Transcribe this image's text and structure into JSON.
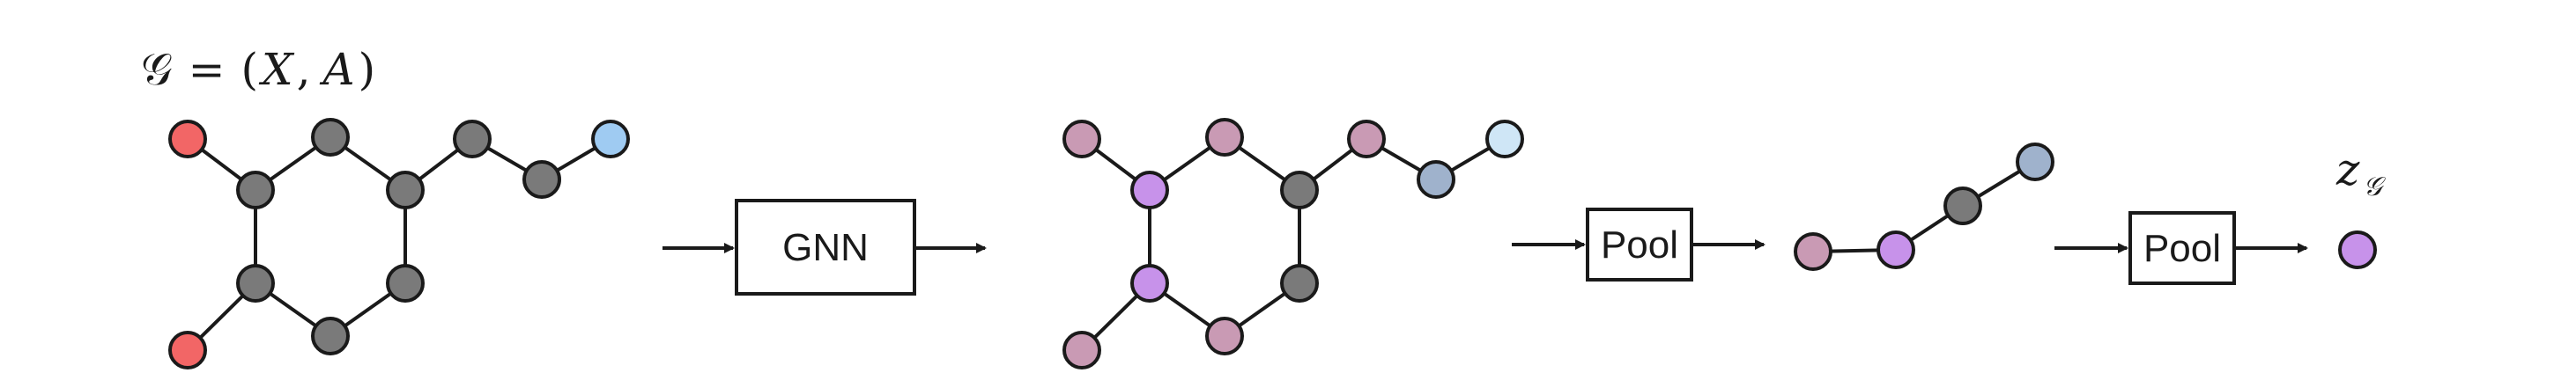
{
  "diagram": {
    "graph_label": {
      "symbol": "𝒢",
      "equals": "=",
      "open": "(",
      "x": "X",
      "comma": ",",
      "a": "A",
      "close": ")"
    },
    "stage_labels": {
      "gnn": "GNN",
      "pool_1": "Pool",
      "pool_2": "Pool"
    },
    "output_label": {
      "base": "z",
      "subscript": "𝒢"
    },
    "colors": {
      "gray": "#7a7a7a",
      "red": "#f26666",
      "blue": "#9fcbf2",
      "pink": "#c99ab4",
      "purple": "#c792ea",
      "steel": "#9fb2cc",
      "light_blue": "#cfe6f6",
      "stroke": "#1a1a1a"
    }
  }
}
